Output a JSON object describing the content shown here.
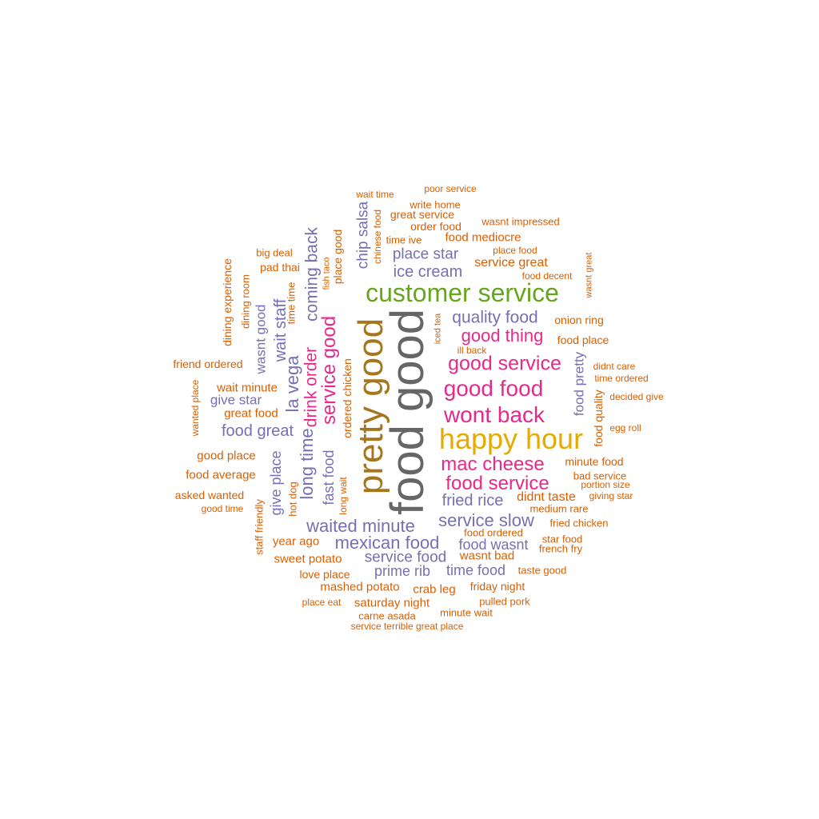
{
  "words": {
    "w0": "food good",
    "w1": "pretty good",
    "w2": "customer service",
    "w3": "happy hour",
    "w4": "wont back",
    "w5": "good food",
    "w6": "good service",
    "w7": "good thing",
    "w8": "quality food",
    "w9": "mac cheese",
    "w10": "food service",
    "w11": "service good",
    "w12": "drink order",
    "w13": "long time",
    "w14": "la vega",
    "w15": "coming back",
    "w16": "wait staff",
    "w17": "waited minute",
    "w18": "mexican food",
    "w19": "service slow",
    "w20": "fried rice",
    "w21": "food great",
    "w22": "ice cream",
    "w23": "place star",
    "w24": "chip salsa",
    "w25": "service food",
    "w26": "food wasnt",
    "w27": "prime rib",
    "w28": "time food",
    "w29": "give place",
    "w30": "fast food",
    "w31": "wasnt good",
    "w32": "give star",
    "w33": "food pretty",
    "w34": "food quality",
    "w35": "service great",
    "w36": "food mediocre",
    "w37": "great service",
    "w38": "order food",
    "w39": "write home",
    "w40": "wait time",
    "w41": "poor service",
    "w42": "wasnt impressed",
    "w43": "time ive",
    "w44": "chinese food",
    "w45": "place good",
    "w46": "fish taco",
    "w47": "place food",
    "w48": "food decent",
    "w49": "wasnt great",
    "w50": "onion ring",
    "w51": "food place",
    "w52": "iced tea",
    "w53": "ill back",
    "w54": "didnt care",
    "w55": "time ordered",
    "w56": "decided give",
    "w57": "egg roll",
    "w58": "minute food",
    "w59": "bad service",
    "w60": "portion size",
    "w61": "giving star",
    "w62": "didnt taste",
    "w63": "medium rare",
    "w64": "fried chicken",
    "w65": "star food",
    "w66": "french fry",
    "w67": "food ordered",
    "w68": "wasnt bad",
    "w69": "taste good",
    "w70": "friday night",
    "w71": "pulled pork",
    "w72": "minute wait",
    "w73": "crab leg",
    "w74": "saturday night",
    "w75": "carne asada",
    "w76": "service terrible great place",
    "w77": "mashed potato",
    "w78": "place eat",
    "w79": "love place",
    "w80": "sweet potato",
    "w81": "year ago",
    "w82": "staff friendly",
    "w83": "hot dog",
    "w84": "long wait",
    "w85": "ordered chicken",
    "w86": "good place",
    "w87": "food average",
    "w88": "asked wanted",
    "w89": "good time",
    "w90": "great food",
    "w91": "wait minute",
    "w92": "friend ordered",
    "w93": "wanted place",
    "w94": "dining experience",
    "w95": "dining room",
    "w96": "big deal",
    "w97": "pad thai",
    "w98": "time time"
  },
  "colors": {
    "orange": "#d95f02",
    "purple": "#7570b3",
    "magenta": "#e7298a",
    "green": "#66a61e",
    "gold": "#e6ab02",
    "brown": "#a6761d",
    "gray": "#666666"
  }
}
